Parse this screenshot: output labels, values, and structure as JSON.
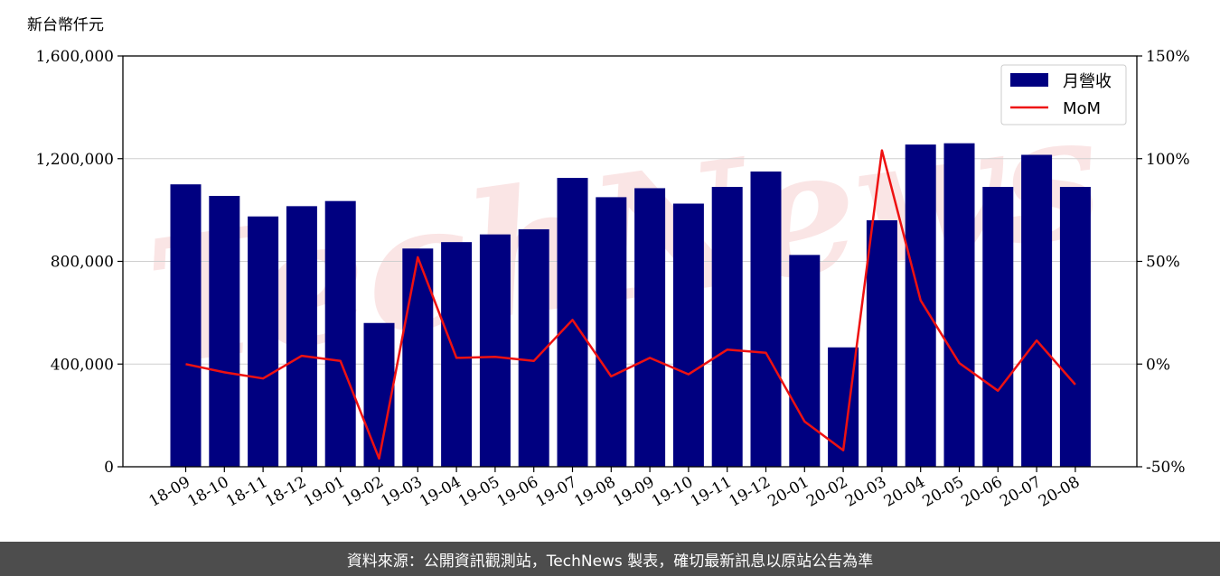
{
  "chart_data": {
    "type": "bar",
    "unit_label": "新台幣仟元",
    "categories": [
      "18-09",
      "18-10",
      "18-11",
      "18-12",
      "19-01",
      "19-02",
      "19-03",
      "19-04",
      "19-05",
      "19-06",
      "19-07",
      "19-08",
      "19-09",
      "19-10",
      "19-11",
      "19-12",
      "20-01",
      "20-02",
      "20-03",
      "20-04",
      "20-05",
      "20-06",
      "20-07",
      "20-08"
    ],
    "series": [
      {
        "name": "月營收",
        "type": "bar",
        "axis": "left",
        "color": "#000080",
        "values": [
          1100000,
          1055000,
          975000,
          1015000,
          1035000,
          560000,
          850000,
          875000,
          905000,
          925000,
          1125000,
          1050000,
          1085000,
          1025000,
          1090000,
          1150000,
          825000,
          465000,
          960000,
          1255000,
          1260000,
          1090000,
          1215000,
          1090000
        ]
      },
      {
        "name": "MoM",
        "type": "line",
        "axis": "right",
        "color": "#ee1111",
        "values": [
          0.0,
          -4.0,
          -7.0,
          4.0,
          1.5,
          -46.0,
          52.0,
          3.0,
          3.5,
          1.5,
          21.5,
          -6.0,
          3.0,
          -5.0,
          7.0,
          5.5,
          -28.0,
          -42.0,
          104.0,
          31.0,
          0.5,
          -13.0,
          11.5,
          -10.0
        ]
      }
    ],
    "yleft": {
      "ylim": [
        0,
        1600000
      ],
      "ticks": [
        "0",
        "400,000",
        "800,000",
        "1,200,000",
        "1,600,000"
      ],
      "tick_values": [
        0,
        400000,
        800000,
        1200000,
        1600000
      ]
    },
    "yright": {
      "ylim": [
        -50,
        150
      ],
      "ticks": [
        "-50%",
        "0%",
        "50%",
        "100%",
        "150%"
      ],
      "tick_values": [
        -50,
        0,
        50,
        100,
        150
      ]
    },
    "grid": true,
    "legend": "top-right"
  },
  "footer": {
    "text": "資料來源：公開資訊觀測站，TechNews 製表，確切最新訊息以原站公告為準"
  },
  "watermark": {
    "text": "TechNews"
  }
}
